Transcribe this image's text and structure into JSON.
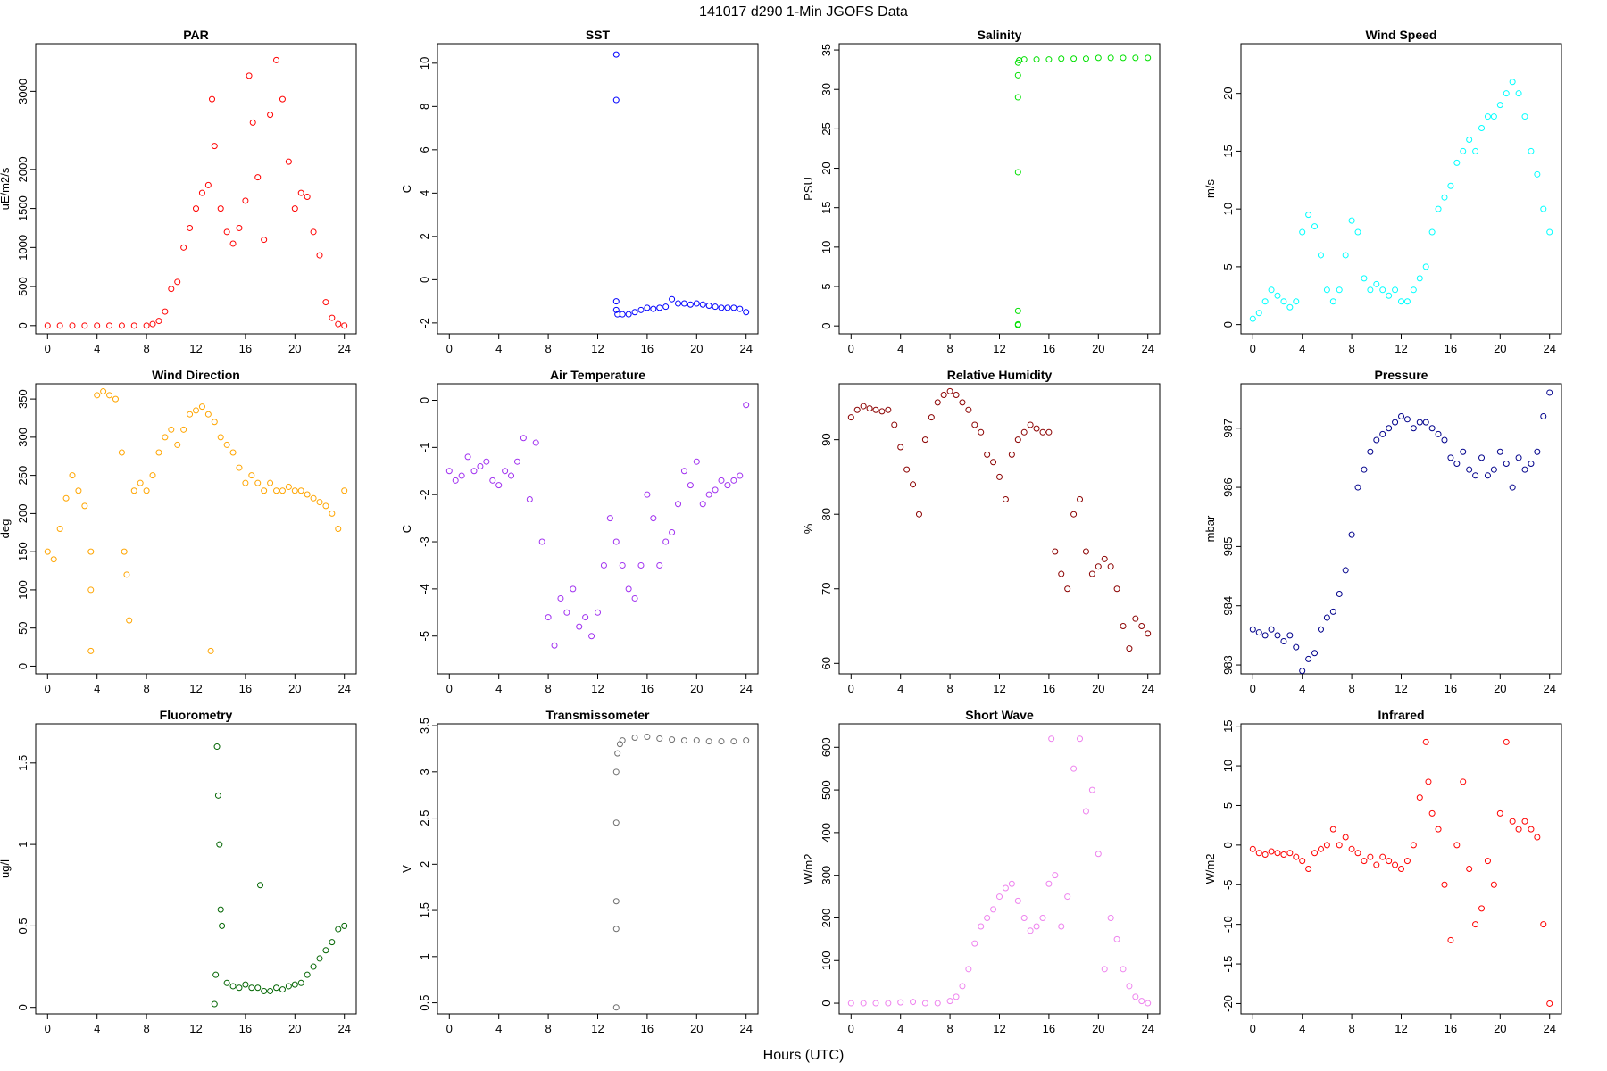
{
  "figure": {
    "title": "141017   d290   1-Min  JGOFS Data",
    "xlabel": "Hours (UTC)"
  },
  "chart_data": [
    {
      "type": "scatter",
      "title": "PAR",
      "ylabel": "uE/m2/s",
      "color": "#ff0000",
      "xlim": [
        -0.96,
        24.96
      ],
      "ylim": [
        -105,
        3610
      ],
      "xticks": [
        0,
        4,
        8,
        12,
        16,
        20,
        24
      ],
      "yticks": [
        0,
        500,
        1000,
        1500,
        2000,
        3000
      ],
      "x": [
        0,
        1,
        2,
        3,
        4,
        5,
        6,
        7,
        8,
        8.5,
        9,
        9.5,
        10,
        10.5,
        11,
        11.5,
        12,
        12.5,
        13,
        13.3,
        13.5,
        14,
        14.5,
        15,
        15.5,
        16,
        16.3,
        16.6,
        17,
        17.5,
        18,
        18.5,
        19,
        19.5,
        20,
        20.5,
        21,
        21.5,
        22,
        22.5,
        23,
        23.5,
        24
      ],
      "y": [
        0,
        0,
        0,
        0,
        0,
        0,
        0,
        0,
        0,
        20,
        60,
        180,
        470,
        560,
        1000,
        1250,
        1500,
        1700,
        1800,
        2900,
        2300,
        1500,
        1200,
        1050,
        1250,
        1600,
        3200,
        2600,
        1900,
        1100,
        2700,
        3400,
        2900,
        2100,
        1500,
        1700,
        1650,
        1200,
        900,
        300,
        100,
        20,
        0
      ]
    },
    {
      "type": "scatter",
      "title": "SST",
      "ylabel": "C",
      "color": "#0000ff",
      "xlim": [
        -0.96,
        24.96
      ],
      "ylim": [
        -2.5,
        10.9
      ],
      "xticks": [
        0,
        4,
        8,
        12,
        16,
        20,
        24
      ],
      "yticks": [
        -2,
        0,
        2,
        4,
        6,
        8,
        10
      ],
      "x": [
        13.5,
        13.5,
        13.5,
        13.5,
        13.6,
        14,
        14.5,
        15,
        15.5,
        16,
        16.5,
        17,
        17.5,
        18,
        18.5,
        19,
        19.5,
        20,
        20.5,
        21,
        21.5,
        22,
        22.5,
        23,
        23.5,
        24
      ],
      "y": [
        10.4,
        8.3,
        -1.0,
        -1.4,
        -1.6,
        -1.6,
        -1.6,
        -1.5,
        -1.4,
        -1.3,
        -1.35,
        -1.3,
        -1.25,
        -0.9,
        -1.1,
        -1.1,
        -1.15,
        -1.1,
        -1.15,
        -1.2,
        -1.25,
        -1.3,
        -1.3,
        -1.3,
        -1.35,
        -1.5
      ]
    },
    {
      "type": "scatter",
      "title": "Salinity",
      "ylabel": "PSU",
      "color": "#00e000",
      "xlim": [
        -0.96,
        24.96
      ],
      "ylim": [
        -1.0,
        35.8
      ],
      "xticks": [
        0,
        4,
        8,
        12,
        16,
        20,
        24
      ],
      "yticks": [
        0,
        5,
        10,
        15,
        20,
        25,
        30,
        35
      ],
      "x": [
        13.5,
        13.5,
        13.5,
        13.5,
        13.5,
        13.5,
        13.5,
        13.6,
        14,
        15,
        16,
        17,
        18,
        19,
        20,
        21,
        22,
        23,
        24
      ],
      "y": [
        0.1,
        0.2,
        1.9,
        19.5,
        29,
        31.8,
        33.4,
        33.7,
        33.8,
        33.8,
        33.8,
        33.9,
        33.9,
        33.9,
        34,
        34,
        34,
        34,
        34
      ]
    },
    {
      "type": "scatter",
      "title": "Wind Speed",
      "ylabel": "m/s",
      "color": "#00ffff",
      "xlim": [
        -0.96,
        24.96
      ],
      "ylim": [
        -0.8,
        24.3
      ],
      "xticks": [
        0,
        4,
        8,
        12,
        16,
        20,
        24
      ],
      "yticks": [
        0,
        5,
        10,
        15,
        20
      ],
      "x": [
        0,
        0.5,
        1,
        1.5,
        2,
        2.5,
        3,
        3.5,
        4,
        4.5,
        5,
        5.5,
        6,
        6.5,
        7,
        7.5,
        8,
        8.5,
        9,
        9.5,
        10,
        10.5,
        11,
        11.5,
        12,
        12.5,
        13,
        13.5,
        14,
        14.5,
        15,
        15.5,
        16,
        16.5,
        17,
        17.5,
        18,
        18.5,
        19,
        19.5,
        20,
        20.5,
        21,
        21.5,
        22,
        22.5,
        23,
        23.5,
        24
      ],
      "y": [
        0.5,
        1,
        2,
        3,
        2.5,
        2,
        1.5,
        2,
        8,
        9.5,
        8.5,
        6,
        3,
        2,
        3,
        6,
        9,
        8,
        4,
        3,
        3.5,
        3,
        2.5,
        3,
        2,
        2,
        3,
        4,
        5,
        8,
        10,
        11,
        12,
        14,
        15,
        16,
        15,
        17,
        18,
        18,
        19,
        20,
        21,
        20,
        18,
        15,
        13,
        10,
        8
      ]
    },
    {
      "type": "scatter",
      "title": "Wind Direction",
      "ylabel": "deg",
      "color": "#ffa500",
      "xlim": [
        -0.96,
        24.96
      ],
      "ylim": [
        -10,
        370
      ],
      "xticks": [
        0,
        4,
        8,
        12,
        16,
        20,
        24
      ],
      "yticks": [
        0,
        50,
        100,
        150,
        200,
        250,
        300,
        350
      ],
      "x": [
        0,
        0.5,
        1,
        1.5,
        2,
        2.5,
        3,
        3.5,
        3.5,
        3.5,
        4,
        4.5,
        5,
        5.5,
        6,
        6.2,
        6.4,
        6.6,
        7,
        7.5,
        8,
        8.5,
        9,
        9.5,
        10,
        10.5,
        11,
        11.5,
        12,
        12.5,
        13,
        13.2,
        13.5,
        14,
        14.5,
        15,
        15.5,
        16,
        16.5,
        17,
        17.5,
        18,
        18.5,
        19,
        19.5,
        20,
        20.5,
        21,
        21.5,
        22,
        22.5,
        23,
        23.5,
        24
      ],
      "y": [
        150,
        140,
        180,
        220,
        250,
        230,
        210,
        150,
        100,
        20,
        355,
        360,
        355,
        350,
        280,
        150,
        120,
        60,
        230,
        240,
        230,
        250,
        280,
        300,
        310,
        290,
        310,
        330,
        335,
        340,
        330,
        20,
        320,
        300,
        290,
        280,
        260,
        240,
        250,
        240,
        230,
        240,
        230,
        230,
        235,
        230,
        230,
        225,
        220,
        215,
        210,
        200,
        180,
        230
      ]
    },
    {
      "type": "scatter",
      "title": "Air Temperature",
      "ylabel": "C",
      "color": "#a030f0",
      "xlim": [
        -0.96,
        24.96
      ],
      "ylim": [
        -5.8,
        0.35
      ],
      "xticks": [
        0,
        4,
        8,
        12,
        16,
        20,
        24
      ],
      "yticks": [
        -5,
        -4,
        -3,
        -2,
        -1,
        0
      ],
      "x": [
        0,
        0.5,
        1,
        1.5,
        2,
        2.5,
        3,
        3.5,
        4,
        4.5,
        5,
        5.5,
        6,
        6.5,
        7,
        7.5,
        8,
        8.5,
        9,
        9.5,
        10,
        10.5,
        11,
        11.5,
        12,
        12.5,
        13,
        13.5,
        14,
        14.5,
        15,
        15.5,
        16,
        16.5,
        17,
        17.5,
        18,
        18.5,
        19,
        19.5,
        20,
        20.5,
        21,
        21.5,
        22,
        22.5,
        23,
        23.5,
        24
      ],
      "y": [
        -1.5,
        -1.7,
        -1.6,
        -1.2,
        -1.5,
        -1.4,
        -1.3,
        -1.7,
        -1.8,
        -1.5,
        -1.6,
        -1.3,
        -0.8,
        -2.1,
        -0.9,
        -3.0,
        -4.6,
        -5.2,
        -4.2,
        -4.5,
        -4.0,
        -4.8,
        -4.6,
        -5.0,
        -4.5,
        -3.5,
        -2.5,
        -3.0,
        -3.5,
        -4.0,
        -4.2,
        -3.5,
        -2.0,
        -2.5,
        -3.5,
        -3.0,
        -2.8,
        -2.2,
        -1.5,
        -1.8,
        -1.3,
        -2.2,
        -2.0,
        -1.9,
        -1.7,
        -1.8,
        -1.7,
        -1.6,
        -0.1
      ]
    },
    {
      "type": "scatter",
      "title": "Relative Humidity",
      "ylabel": "%",
      "color": "#8b0000",
      "xlim": [
        -0.96,
        24.96
      ],
      "ylim": [
        58.6,
        97.5
      ],
      "xticks": [
        0,
        4,
        8,
        12,
        16,
        20,
        24
      ],
      "yticks": [
        60,
        70,
        80,
        90
      ],
      "x": [
        0,
        0.5,
        1,
        1.5,
        2,
        2.5,
        3,
        3.5,
        4,
        4.5,
        5,
        5.5,
        6,
        6.5,
        7,
        7.5,
        8,
        8.5,
        9,
        9.5,
        10,
        10.5,
        11,
        11.5,
        12,
        12.5,
        13,
        13.5,
        14,
        14.5,
        15,
        15.5,
        16,
        16.5,
        17,
        17.5,
        18,
        18.5,
        19,
        19.5,
        20,
        20.5,
        21,
        21.5,
        22,
        22.5,
        23,
        23.5,
        24
      ],
      "y": [
        93,
        94,
        94.5,
        94.2,
        94,
        93.8,
        94,
        92,
        89,
        86,
        84,
        80,
        90,
        93,
        95,
        96,
        96.5,
        96,
        95,
        94,
        92,
        91,
        88,
        87,
        85,
        82,
        88,
        90,
        91,
        92,
        91.5,
        91,
        91,
        75,
        72,
        70,
        80,
        82,
        75,
        72,
        73,
        74,
        73,
        70,
        65,
        62,
        66,
        65,
        64
      ]
    },
    {
      "type": "scatter",
      "title": "Pressure",
      "ylabel": "mbar",
      "color": "#00008b",
      "xlim": [
        -0.96,
        24.96
      ],
      "ylim": [
        982.85,
        987.75
      ],
      "xticks": [
        0,
        4,
        8,
        12,
        16,
        20,
        24
      ],
      "yticks": [
        983,
        984,
        985,
        986,
        987
      ],
      "x": [
        0,
        0.5,
        1,
        1.5,
        2,
        2.5,
        3,
        3.5,
        4,
        4.5,
        5,
        5.5,
        6,
        6.5,
        7,
        7.5,
        8,
        8.5,
        9,
        9.5,
        10,
        10.5,
        11,
        11.5,
        12,
        12.5,
        13,
        13.5,
        14,
        14.5,
        15,
        15.5,
        16,
        16.5,
        17,
        17.5,
        18,
        18.5,
        19,
        19.5,
        20,
        20.5,
        21,
        21.5,
        22,
        22.5,
        23,
        23.5,
        24
      ],
      "y": [
        983.6,
        983.55,
        983.5,
        983.6,
        983.5,
        983.4,
        983.5,
        983.3,
        982.9,
        983.1,
        983.2,
        983.6,
        983.8,
        983.9,
        984.2,
        984.6,
        985.2,
        986.0,
        986.3,
        986.6,
        986.8,
        986.9,
        987.0,
        987.1,
        987.2,
        987.15,
        987.0,
        987.1,
        987.1,
        987.0,
        986.9,
        986.8,
        986.5,
        986.4,
        986.6,
        986.3,
        986.2,
        986.5,
        986.2,
        986.3,
        986.6,
        986.4,
        986.0,
        986.5,
        986.3,
        986.4,
        986.6,
        987.2,
        987.6
      ]
    },
    {
      "type": "scatter",
      "title": "Fluorometry",
      "ylabel": "ug/l",
      "color": "#006400",
      "xlim": [
        -0.96,
        24.96
      ],
      "ylim": [
        -0.04,
        1.74
      ],
      "xticks": [
        0,
        4,
        8,
        12,
        16,
        20,
        24
      ],
      "yticks": [
        0.0,
        0.5,
        1.0,
        1.5
      ],
      "x": [
        13.5,
        13.6,
        13.7,
        13.8,
        13.9,
        14,
        14.1,
        14.5,
        15,
        15.5,
        16,
        16.5,
        17,
        17.2,
        17.5,
        18,
        18.5,
        19,
        19.5,
        20,
        20.5,
        21,
        21.5,
        22,
        22.5,
        23,
        23.5,
        24
      ],
      "y": [
        0.02,
        0.2,
        1.6,
        1.3,
        1.0,
        0.6,
        0.5,
        0.15,
        0.13,
        0.12,
        0.14,
        0.12,
        0.12,
        0.75,
        0.1,
        0.1,
        0.12,
        0.11,
        0.13,
        0.14,
        0.15,
        0.2,
        0.25,
        0.3,
        0.35,
        0.4,
        0.48,
        0.5
      ]
    },
    {
      "type": "scatter",
      "title": "Transmissometer",
      "ylabel": "V",
      "color": "#707070",
      "xlim": [
        -0.96,
        24.96
      ],
      "ylim": [
        0.38,
        3.52
      ],
      "xticks": [
        0,
        4,
        8,
        12,
        16,
        20,
        24
      ],
      "yticks": [
        0.5,
        1.0,
        1.5,
        2.0,
        2.5,
        3.0,
        3.5
      ],
      "x": [
        13.5,
        13.5,
        13.5,
        13.5,
        13.5,
        13.6,
        13.8,
        14,
        15,
        16,
        17,
        18,
        19,
        20,
        21,
        22,
        23,
        24
      ],
      "y": [
        0.45,
        1.3,
        1.6,
        2.45,
        3.0,
        3.2,
        3.3,
        3.34,
        3.37,
        3.38,
        3.36,
        3.35,
        3.34,
        3.34,
        3.33,
        3.33,
        3.33,
        3.34
      ]
    },
    {
      "type": "scatter",
      "title": "Short Wave",
      "ylabel": "W/m2",
      "color": "#ee82ee",
      "xlim": [
        -0.96,
        24.96
      ],
      "ylim": [
        -25,
        655
      ],
      "xticks": [
        0,
        4,
        8,
        12,
        16,
        20,
        24
      ],
      "yticks": [
        0,
        100,
        200,
        300,
        400,
        500,
        600
      ],
      "x": [
        0,
        1,
        2,
        3,
        4,
        5,
        6,
        7,
        8,
        8.5,
        9,
        9.5,
        10,
        10.5,
        11,
        11.5,
        12,
        12.5,
        13,
        13.5,
        14,
        14.5,
        15,
        15.5,
        16,
        16.2,
        16.5,
        17,
        17.5,
        18,
        18.5,
        19,
        19.5,
        20,
        20.5,
        21,
        21.5,
        22,
        22.5,
        23,
        23.5,
        24
      ],
      "y": [
        0,
        0,
        0,
        0,
        2,
        3,
        0,
        0,
        5,
        15,
        40,
        80,
        140,
        180,
        200,
        220,
        250,
        270,
        280,
        240,
        200,
        170,
        180,
        200,
        280,
        620,
        300,
        180,
        250,
        550,
        620,
        450,
        500,
        350,
        80,
        200,
        150,
        80,
        40,
        15,
        5,
        0
      ]
    },
    {
      "type": "scatter",
      "title": "Infrared",
      "ylabel": "W/m2",
      "color": "#ff0000",
      "xlim": [
        -0.96,
        24.96
      ],
      "ylim": [
        -21.3,
        15.3
      ],
      "xticks": [
        0,
        4,
        8,
        12,
        16,
        20,
        24
      ],
      "yticks": [
        -20,
        -15,
        -10,
        -5,
        0,
        5,
        10,
        15
      ],
      "x": [
        0,
        0.5,
        1,
        1.5,
        2,
        2.5,
        3,
        3.5,
        4,
        4.5,
        5,
        5.5,
        6,
        6.5,
        7,
        7.5,
        8,
        8.5,
        9,
        9.5,
        10,
        10.5,
        11,
        11.5,
        12,
        12.5,
        13,
        13.5,
        14,
        14.2,
        14.5,
        15,
        15.5,
        16,
        16.5,
        17,
        17.5,
        18,
        18.5,
        19,
        19.5,
        20,
        20.5,
        21,
        21.5,
        22,
        22.5,
        23,
        23.5,
        24
      ],
      "y": [
        -0.5,
        -1,
        -1.2,
        -0.8,
        -1,
        -1.2,
        -1,
        -1.5,
        -2,
        -3,
        -1,
        -0.5,
        0,
        2,
        0,
        1,
        -0.5,
        -1,
        -2,
        -1.5,
        -2.5,
        -1.5,
        -2,
        -2.5,
        -3,
        -2,
        0,
        6,
        13,
        8,
        4,
        2,
        -5,
        -12,
        0,
        8,
        -3,
        -10,
        -8,
        -2,
        -5,
        4,
        13,
        3,
        2,
        3,
        2,
        1,
        -10,
        -20
      ]
    }
  ]
}
